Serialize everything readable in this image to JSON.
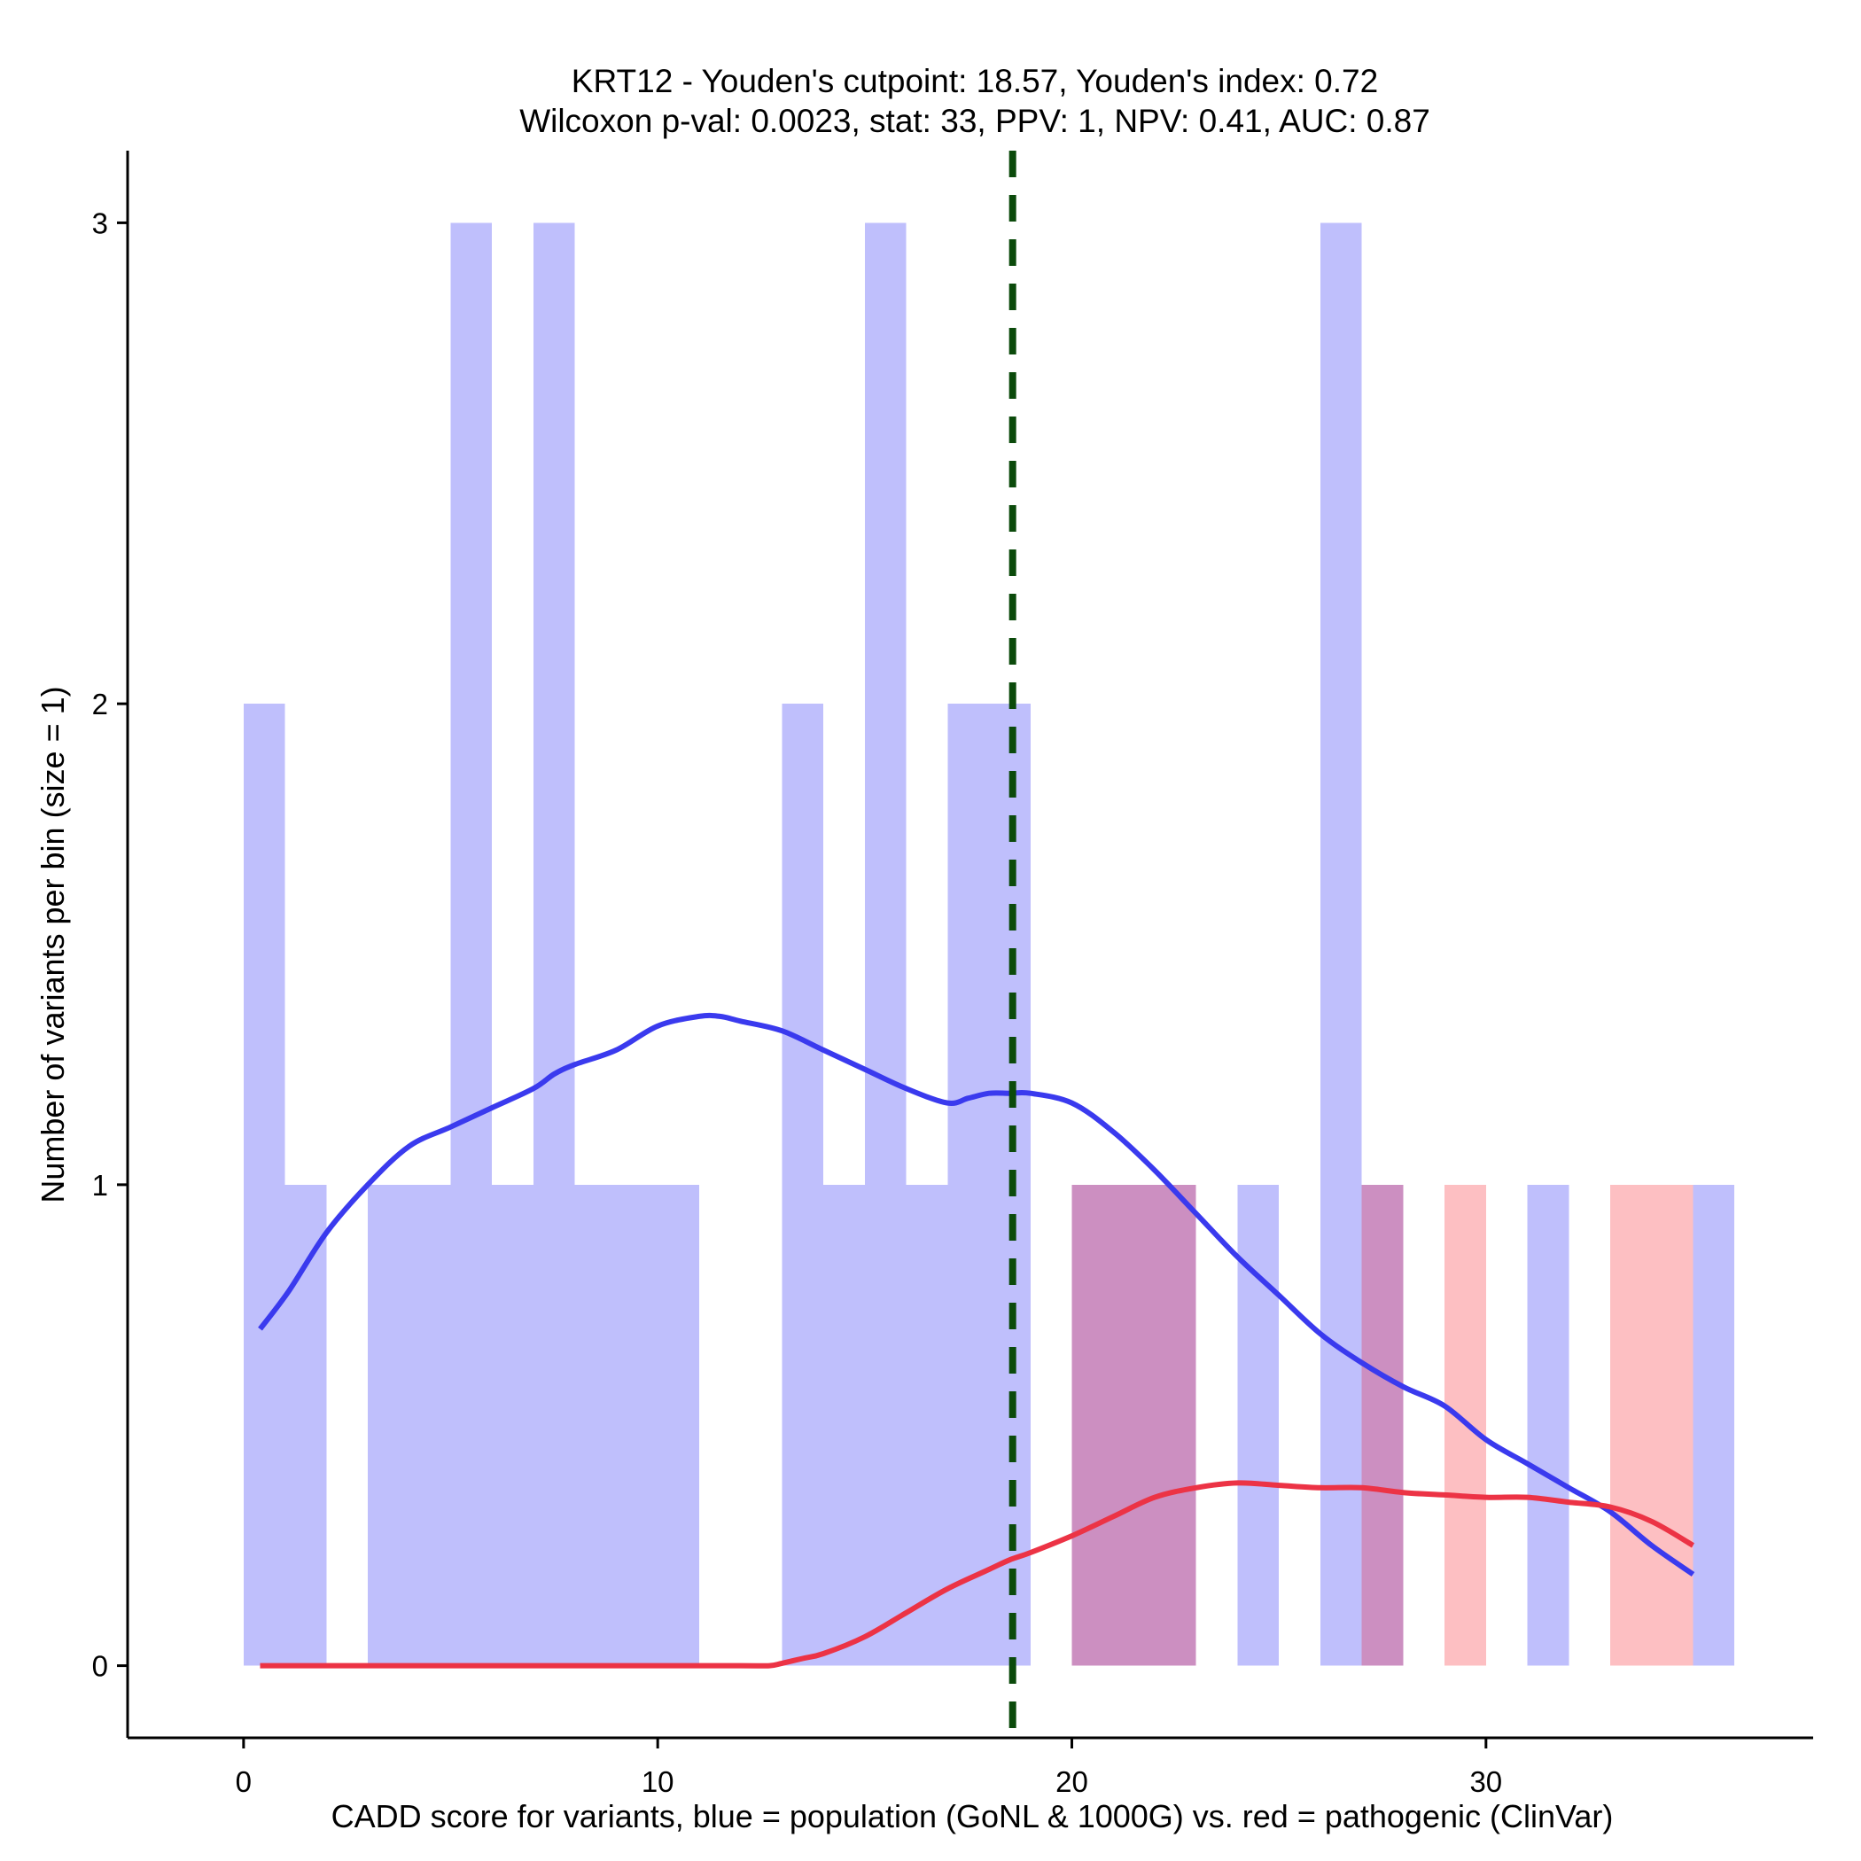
{
  "chart_data": {
    "type": "histogram",
    "title_line1": "KRT12 - Youden's cutpoint: 18.57, Youden's index: 0.72",
    "title_line2": "Wilcoxon p-val: 0.0023, stat: 33, PPV: 1, NPV: 0.41, AUC: 0.87",
    "xlabel": "CADD score for variants, blue = population (GoNL & 1000G) vs. red = pathogenic (ClinVar)",
    "ylabel": "Number of variants per bin (size = 1)",
    "xlim": [
      -2.8,
      37.9
    ],
    "ylim": [
      -0.15,
      3.15
    ],
    "x_ticks": [
      0,
      10,
      20,
      30
    ],
    "y_ticks": [
      0,
      1,
      2,
      3
    ],
    "bin_width": 1,
    "cutpoint": 18.57,
    "colors": {
      "population_bar": "#bfbffc",
      "pathogenic_bar": "#fdbfc2",
      "overlap_bar": "#cc8fc1",
      "population_line": "#3a3aee",
      "pathogenic_line": "#ec3345",
      "cutpoint_line": "#0b4a0b"
    },
    "population_bins": [
      {
        "start": 0,
        "count": 2
      },
      {
        "start": 1,
        "count": 1
      },
      {
        "start": 3,
        "count": 1
      },
      {
        "start": 4,
        "count": 1
      },
      {
        "start": 5,
        "count": 3
      },
      {
        "start": 6,
        "count": 1
      },
      {
        "start": 7,
        "count": 3
      },
      {
        "start": 8,
        "count": 1
      },
      {
        "start": 9,
        "count": 1
      },
      {
        "start": 10,
        "count": 1
      },
      {
        "start": 13,
        "count": 2
      },
      {
        "start": 14,
        "count": 1
      },
      {
        "start": 15,
        "count": 3
      },
      {
        "start": 16,
        "count": 1
      },
      {
        "start": 17,
        "count": 2
      },
      {
        "start": 18,
        "count": 2
      },
      {
        "start": 20,
        "count": 1
      },
      {
        "start": 21,
        "count": 1
      },
      {
        "start": 22,
        "count": 1
      },
      {
        "start": 24,
        "count": 1
      },
      {
        "start": 26,
        "count": 3
      },
      {
        "start": 27,
        "count": 1
      },
      {
        "start": 31,
        "count": 1
      },
      {
        "start": 35,
        "count": 1
      }
    ],
    "pathogenic_bins": [
      {
        "start": 20,
        "count": 1
      },
      {
        "start": 21,
        "count": 1
      },
      {
        "start": 22,
        "count": 1
      },
      {
        "start": 27,
        "count": 1
      },
      {
        "start": 29,
        "count": 1
      },
      {
        "start": 33,
        "count": 1
      },
      {
        "start": 34,
        "count": 1
      }
    ],
    "series": [
      {
        "name": "population",
        "x": [
          0.4,
          1.1,
          2,
          3,
          4,
          5,
          6,
          7,
          7.5,
          8,
          9,
          10,
          11,
          11.5,
          12,
          13,
          14,
          15,
          16,
          17,
          17.5,
          18,
          18.5,
          19,
          20,
          21,
          22,
          23,
          24,
          25,
          26,
          27,
          28,
          29,
          30,
          31,
          32,
          33,
          34,
          35
        ],
        "values": [
          0.7,
          0.78,
          0.9,
          1.0,
          1.08,
          1.12,
          1.16,
          1.2,
          1.23,
          1.25,
          1.28,
          1.33,
          1.35,
          1.35,
          1.34,
          1.32,
          1.28,
          1.24,
          1.2,
          1.17,
          1.18,
          1.19,
          1.19,
          1.19,
          1.17,
          1.11,
          1.03,
          0.94,
          0.85,
          0.77,
          0.69,
          0.63,
          0.58,
          0.54,
          0.47,
          0.42,
          0.37,
          0.32,
          0.25,
          0.19
        ]
      },
      {
        "name": "pathogenic",
        "x": [
          0.4,
          2,
          4,
          6,
          8,
          10,
          12,
          12.7,
          13,
          13.5,
          14,
          15,
          16,
          17,
          18,
          18.5,
          19,
          20,
          21,
          22,
          23,
          24,
          25,
          26,
          27,
          28,
          29,
          30,
          31,
          32,
          33,
          34,
          35
        ],
        "values": [
          0,
          0,
          0,
          0,
          0,
          0,
          0,
          0,
          0.005,
          0.015,
          0.025,
          0.06,
          0.11,
          0.16,
          0.2,
          0.22,
          0.235,
          0.27,
          0.31,
          0.35,
          0.37,
          0.38,
          0.375,
          0.37,
          0.37,
          0.36,
          0.355,
          0.35,
          0.35,
          0.34,
          0.33,
          0.3,
          0.25
        ]
      }
    ]
  }
}
